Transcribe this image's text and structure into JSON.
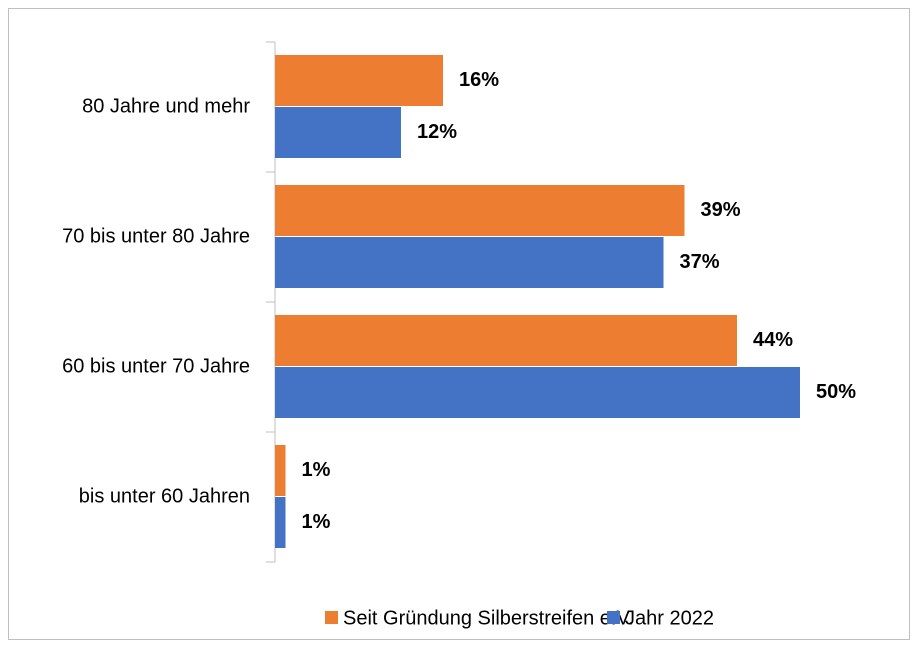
{
  "chart_data": {
    "type": "bar",
    "orientation": "horizontal",
    "categories": [
      "80 Jahre und mehr",
      "70 bis unter 80 Jahre",
      "60 bis unter 70 Jahre",
      "bis unter 60 Jahren"
    ],
    "series": [
      {
        "name": "Seit Gründung Silberstreifen e.V.",
        "color": "#ed7d31",
        "values": [
          16,
          39,
          44,
          1
        ],
        "value_labels": [
          "16%",
          "39%",
          "44%",
          "1%"
        ]
      },
      {
        "name": "Jahr 2022",
        "color": "#4472c4",
        "values": [
          12,
          37,
          50,
          1
        ],
        "value_labels": [
          "12%",
          "37%",
          "50%",
          "1%"
        ]
      }
    ],
    "legend": "bottom"
  }
}
